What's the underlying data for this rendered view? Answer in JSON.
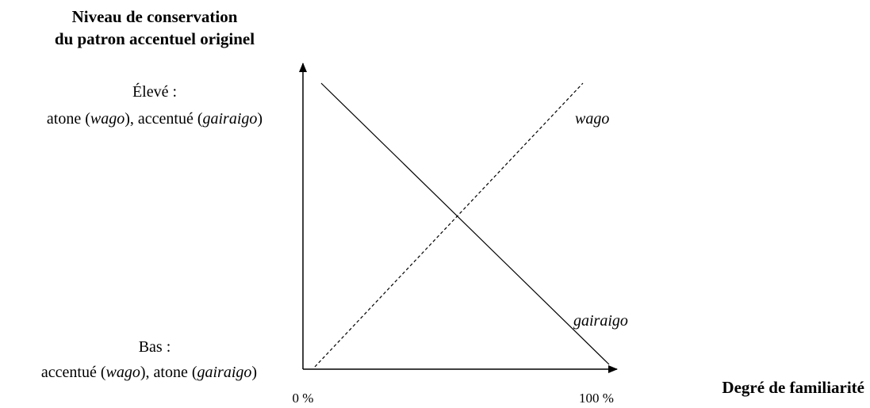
{
  "y_axis_title": [
    "Niveau de conservation",
    "du patron accentuel originel"
  ],
  "high_label": {
    "heading": "Élevé :",
    "parts": [
      "atone (",
      "wago",
      "), accentué (",
      "gairaigo",
      ")"
    ]
  },
  "low_label": {
    "heading": "Bas :",
    "parts": [
      "accentué (",
      "wago",
      "), atone (",
      "gairaigo",
      ")"
    ]
  },
  "x_axis_labels": [
    "0 %",
    "100 %"
  ],
  "x_axis_title": "Degré de familiarité",
  "line_labels": {
    "wago": "wago",
    "gairaigo": "gairaigo"
  }
}
